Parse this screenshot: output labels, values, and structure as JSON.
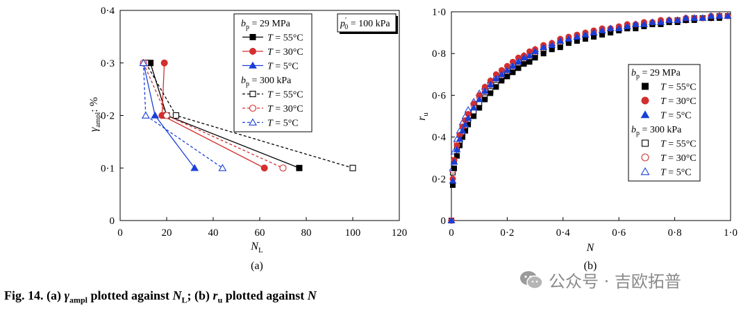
{
  "caption": {
    "prefix": "Fig. 14.",
    "part_a": "(a) ",
    "gamma": "γ",
    "gamma_sub": "ampl",
    "mid_a": " plotted against ",
    "nl": "N",
    "nl_sub": "L",
    "part_b": "; (b) ",
    "ru": "r",
    "ru_sub": "u",
    "end": " plotted against ",
    "n": "N"
  },
  "watermark": {
    "text": "公众号 · 吉欧拓普",
    "icon": "wechat-icon"
  },
  "chart_data": [
    {
      "type": "line",
      "panel_label": "(a)",
      "xlabel": "N",
      "xlabel_sub": "L",
      "ylabel": "γ",
      "ylabel_sub": "ampl",
      "ylabel_unit": ": %",
      "xlim": [
        0,
        120
      ],
      "ylim": [
        0,
        0.4
      ],
      "xticks": [
        {
          "v": 0,
          "label": "0"
        },
        {
          "v": 20,
          "label": "20"
        },
        {
          "v": 40,
          "label": "40"
        },
        {
          "v": 60,
          "label": "60"
        },
        {
          "v": 80,
          "label": "80"
        },
        {
          "v": 100,
          "label": "100"
        },
        {
          "v": 120,
          "label": "120"
        }
      ],
      "yticks": [
        {
          "v": 0,
          "label": "0"
        },
        {
          "v": 0.1,
          "label": "0·1"
        },
        {
          "v": 0.2,
          "label": "0·2"
        },
        {
          "v": 0.3,
          "label": "0·3"
        },
        {
          "v": 0.4,
          "label": "0·4"
        }
      ],
      "annotation": {
        "p": "p",
        "p_sup": "′",
        "p_sub": "0",
        "text": " = 100 kPa"
      },
      "legend_position": "top-right",
      "legend_groups": [
        {
          "b": "b",
          "b_sub": "p",
          "text": " = 29 MPa"
        },
        {
          "b": "b",
          "b_sub": "p",
          "text": " = 300 kPa"
        }
      ],
      "series": [
        {
          "name": "T = 55°C",
          "group": 0,
          "color": "#000000",
          "marker": "square",
          "filled": true,
          "dashed": false,
          "x": [
            13,
            20,
            77
          ],
          "y": [
            0.3,
            0.2,
            0.1
          ]
        },
        {
          "name": "T = 30°C",
          "group": 0,
          "color": "#d32f2f",
          "marker": "circle",
          "filled": true,
          "dashed": false,
          "x": [
            19,
            18,
            62
          ],
          "y": [
            0.3,
            0.2,
            0.1
          ]
        },
        {
          "name": "T = 5°C",
          "group": 0,
          "color": "#1a3fd8",
          "marker": "triangle",
          "filled": true,
          "dashed": false,
          "x": [
            10,
            15,
            32
          ],
          "y": [
            0.3,
            0.2,
            0.1
          ]
        },
        {
          "name": "T = 55°C",
          "group": 1,
          "color": "#000000",
          "marker": "square",
          "filled": false,
          "dashed": true,
          "x": [
            11,
            24,
            100
          ],
          "y": [
            0.3,
            0.2,
            0.1
          ]
        },
        {
          "name": "T = 30°C",
          "group": 1,
          "color": "#d32f2f",
          "marker": "circle",
          "filled": false,
          "dashed": true,
          "x": [
            10,
            20,
            70
          ],
          "y": [
            0.3,
            0.2,
            0.1
          ]
        },
        {
          "name": "T = 5°C",
          "group": 1,
          "color": "#1a3fd8",
          "marker": "triangle",
          "filled": false,
          "dashed": true,
          "x": [
            10,
            11,
            44
          ],
          "y": [
            0.3,
            0.2,
            0.1
          ]
        }
      ]
    },
    {
      "type": "scatter",
      "panel_label": "(b)",
      "xlabel": "N",
      "ylabel": "r",
      "ylabel_sub": "u",
      "xlim": [
        0,
        1
      ],
      "ylim": [
        0,
        1
      ],
      "xticks": [
        {
          "v": 0,
          "label": "0"
        },
        {
          "v": 0.2,
          "label": "0·2"
        },
        {
          "v": 0.4,
          "label": "0·4"
        },
        {
          "v": 0.6,
          "label": "0·6"
        },
        {
          "v": 0.8,
          "label": "0·8"
        },
        {
          "v": 1.0,
          "label": "1·0"
        }
      ],
      "yticks": [
        {
          "v": 0,
          "label": "0"
        },
        {
          "v": 0.2,
          "label": "0·2"
        },
        {
          "v": 0.4,
          "label": "0·4"
        },
        {
          "v": 0.6,
          "label": "0·6"
        },
        {
          "v": 0.8,
          "label": "0·8"
        },
        {
          "v": 1.0,
          "label": "1·0"
        }
      ],
      "legend_position": "right",
      "legend_groups": [
        {
          "b": "b",
          "b_sub": "p",
          "text": " = 29 MPa"
        },
        {
          "b": "b",
          "b_sub": "p",
          "text": " = 300 kPa"
        }
      ],
      "x": [
        0,
        0.005,
        0.01,
        0.02,
        0.03,
        0.04,
        0.05,
        0.06,
        0.08,
        0.1,
        0.12,
        0.14,
        0.16,
        0.18,
        0.2,
        0.22,
        0.24,
        0.26,
        0.28,
        0.3,
        0.33,
        0.36,
        0.39,
        0.42,
        0.45,
        0.48,
        0.51,
        0.54,
        0.57,
        0.6,
        0.63,
        0.66,
        0.69,
        0.72,
        0.75,
        0.78,
        0.81,
        0.84,
        0.87,
        0.9,
        0.93,
        0.96,
        0.99
      ],
      "series": [
        {
          "name": "T = 55°C",
          "group": 0,
          "color": "#000000",
          "marker": "square",
          "filled": true,
          "y": [
            0.0,
            0.17,
            0.25,
            0.31,
            0.36,
            0.4,
            0.43,
            0.46,
            0.5,
            0.54,
            0.58,
            0.61,
            0.64,
            0.67,
            0.69,
            0.71,
            0.73,
            0.75,
            0.76,
            0.78,
            0.8,
            0.82,
            0.83,
            0.85,
            0.86,
            0.87,
            0.88,
            0.89,
            0.9,
            0.91,
            0.92,
            0.92,
            0.93,
            0.94,
            0.94,
            0.95,
            0.95,
            0.96,
            0.96,
            0.97,
            0.97,
            0.97,
            0.98
          ]
        },
        {
          "name": "T = 30°C",
          "group": 0,
          "color": "#d32f2f",
          "marker": "circle",
          "filled": true,
          "y": [
            0.0,
            0.2,
            0.29,
            0.36,
            0.41,
            0.45,
            0.48,
            0.51,
            0.56,
            0.6,
            0.64,
            0.67,
            0.7,
            0.72,
            0.74,
            0.76,
            0.78,
            0.79,
            0.81,
            0.82,
            0.84,
            0.85,
            0.87,
            0.88,
            0.89,
            0.9,
            0.91,
            0.92,
            0.92,
            0.93,
            0.94,
            0.94,
            0.95,
            0.95,
            0.96,
            0.96,
            0.96,
            0.97,
            0.97,
            0.97,
            0.98,
            0.98,
            0.98
          ]
        },
        {
          "name": "T = 5°C",
          "group": 0,
          "color": "#1a3fd8",
          "marker": "triangle",
          "filled": true,
          "y": [
            0.0,
            0.19,
            0.28,
            0.34,
            0.39,
            0.43,
            0.46,
            0.49,
            0.54,
            0.58,
            0.62,
            0.65,
            0.68,
            0.7,
            0.72,
            0.74,
            0.76,
            0.78,
            0.79,
            0.81,
            0.83,
            0.84,
            0.86,
            0.87,
            0.88,
            0.89,
            0.9,
            0.91,
            0.92,
            0.92,
            0.93,
            0.94,
            0.94,
            0.95,
            0.95,
            0.96,
            0.96,
            0.97,
            0.97,
            0.97,
            0.98,
            0.98,
            0.98
          ]
        },
        {
          "name": "T = 55°C",
          "group": 1,
          "color": "#000000",
          "marker": "square",
          "filled": false,
          "y": [
            0.0,
            0.23,
            0.29,
            0.34,
            0.38,
            0.42,
            0.45,
            0.48,
            0.52,
            0.56,
            0.59,
            0.62,
            0.65,
            0.68,
            0.7,
            0.72,
            0.74,
            0.76,
            0.77,
            0.79,
            0.81,
            0.83,
            0.84,
            0.86,
            0.87,
            0.88,
            0.89,
            0.9,
            0.91,
            0.92,
            0.92,
            0.93,
            0.94,
            0.94,
            0.95,
            0.95,
            0.96,
            0.96,
            0.97,
            0.97,
            0.97,
            0.98,
            0.98
          ]
        },
        {
          "name": "T = 30°C",
          "group": 1,
          "color": "#d32f2f",
          "marker": "circle",
          "filled": false,
          "y": [
            0.0,
            0.24,
            0.31,
            0.37,
            0.41,
            0.45,
            0.48,
            0.51,
            0.55,
            0.59,
            0.62,
            0.65,
            0.68,
            0.7,
            0.72,
            0.74,
            0.76,
            0.78,
            0.79,
            0.81,
            0.83,
            0.84,
            0.86,
            0.87,
            0.88,
            0.89,
            0.9,
            0.91,
            0.92,
            0.92,
            0.93,
            0.94,
            0.94,
            0.95,
            0.95,
            0.96,
            0.96,
            0.96,
            0.97,
            0.97,
            0.97,
            0.98,
            0.98
          ]
        },
        {
          "name": "T = 5°C",
          "group": 1,
          "color": "#1a3fd8",
          "marker": "triangle",
          "filled": false,
          "y": [
            0.0,
            0.25,
            0.33,
            0.39,
            0.43,
            0.47,
            0.5,
            0.53,
            0.57,
            0.61,
            0.64,
            0.67,
            0.69,
            0.71,
            0.73,
            0.75,
            0.77,
            0.79,
            0.8,
            0.82,
            0.83,
            0.85,
            0.86,
            0.87,
            0.88,
            0.89,
            0.9,
            0.91,
            0.92,
            0.92,
            0.93,
            0.94,
            0.94,
            0.95,
            0.95,
            0.96,
            0.96,
            0.96,
            0.97,
            0.97,
            0.97,
            0.98,
            0.98
          ]
        }
      ]
    }
  ]
}
